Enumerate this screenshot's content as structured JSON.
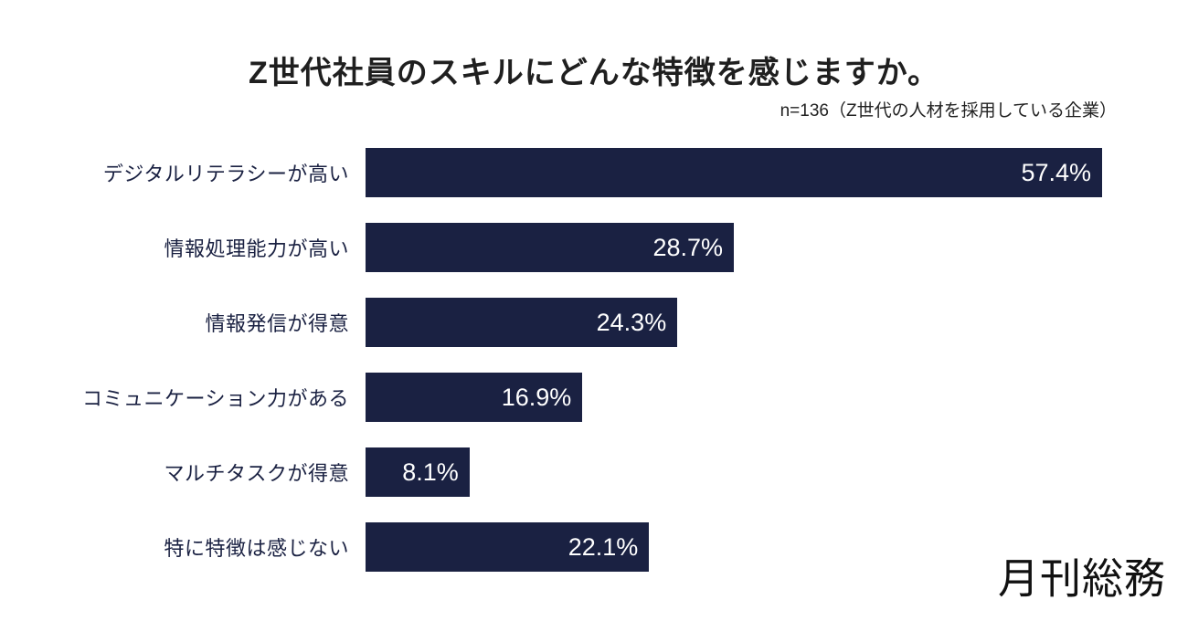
{
  "title": "Z世代社員のスキルにどんな特徴を感じますか。",
  "sample_note": "n=136（Z世代の人材を採用している企業）",
  "logo_text": "月刊総務",
  "colors": {
    "background": "#ffffff",
    "bar": "#1a2142",
    "category_label": "#1a2142",
    "title_text": "#1f1f1f",
    "value_text": "#ffffff",
    "logo_text": "#111111"
  },
  "chart_data": {
    "type": "bar",
    "orientation": "horizontal",
    "title": "Z世代社員のスキルにどんな特徴を感じますか。",
    "subtitle": "n=136（Z世代の人材を採用している企業）",
    "xlabel": "",
    "ylabel": "",
    "categories": [
      "デジタルリテラシーが高い",
      "情報処理能力が高い",
      "情報発信が得意",
      "コミュニケーション力がある",
      "マルチタスクが得意",
      "特に特徴は感じない"
    ],
    "values": [
      57.4,
      28.7,
      24.3,
      16.9,
      8.1,
      22.1
    ],
    "value_labels": [
      "57.4%",
      "28.7%",
      "24.3%",
      "16.9%",
      "8.1%",
      "22.1%"
    ],
    "unit": "%",
    "xlim": [
      0,
      57.4
    ],
    "grid": false,
    "axis_visible": false,
    "legend": "none",
    "value_label_position": "inside-end",
    "bar_color": "#1a2142"
  }
}
